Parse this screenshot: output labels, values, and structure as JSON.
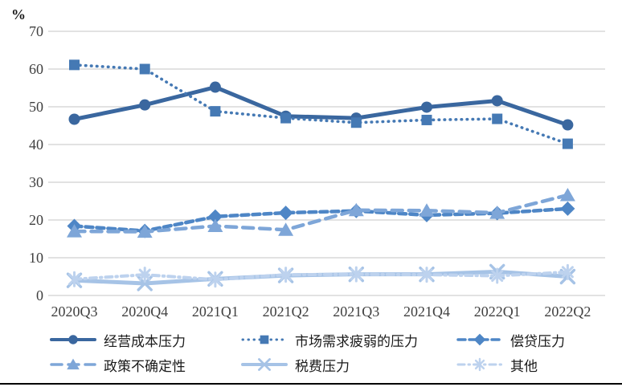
{
  "chart": {
    "unit_label": "%",
    "background": "#FFFFFF",
    "grid_color": "#D9D9D9",
    "tick_color": "#3F3F3F",
    "label_color": "#1A1A1A"
  },
  "chart_data": {
    "type": "line",
    "title": "",
    "xlabel": "",
    "ylabel": "%",
    "ylim": [
      0,
      70
    ],
    "y_ticks": [
      70,
      60,
      50,
      40,
      30,
      20,
      10,
      0
    ],
    "grid": true,
    "legend_position": "bottom",
    "categories": [
      "2020Q3",
      "2020Q4",
      "2021Q1",
      "2021Q2",
      "2021Q3",
      "2021Q4",
      "2022Q1",
      "2022Q2"
    ],
    "series": [
      {
        "name": "经营成本压力",
        "marker": "circle",
        "line": "solid",
        "color": "#3A679F",
        "values": [
          46.7,
          50.5,
          55.2,
          47.5,
          47.0,
          49.9,
          51.6,
          45.2
        ]
      },
      {
        "name": "市场需求疲弱的压力",
        "marker": "square",
        "line": "dotted",
        "color": "#4579B4",
        "values": [
          61.1,
          60.0,
          48.8,
          47.0,
          45.8,
          46.5,
          46.8,
          40.2
        ]
      },
      {
        "name": "偿贷压力",
        "marker": "diamond",
        "line": "dashed",
        "color": "#4E86C6",
        "values": [
          18.4,
          17.1,
          20.9,
          21.9,
          22.4,
          21.3,
          21.8,
          23.0
        ]
      },
      {
        "name": "政策不确定性",
        "marker": "triangle",
        "line": "long-dash",
        "color": "#7EA6D8",
        "values": [
          17.0,
          16.9,
          18.4,
          17.4,
          22.6,
          22.5,
          21.9,
          26.6
        ]
      },
      {
        "name": "税费压力",
        "marker": "x",
        "line": "solid",
        "color": "#A6C3E6",
        "values": [
          4.0,
          3.2,
          4.4,
          5.3,
          5.6,
          5.6,
          6.3,
          5.0
        ]
      },
      {
        "name": "其他",
        "marker": "asterisk",
        "line": "dash-dot",
        "color": "#BDD2EE",
        "values": [
          4.3,
          5.5,
          4.2,
          5.5,
          5.6,
          5.5,
          5.2,
          6.2
        ]
      }
    ]
  }
}
